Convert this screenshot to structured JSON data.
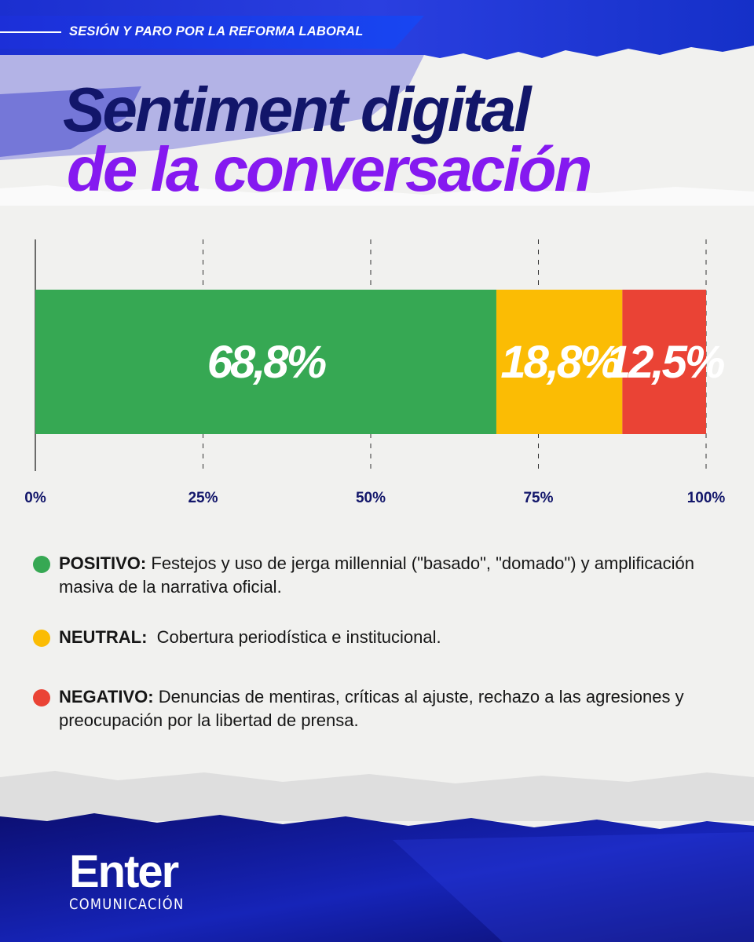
{
  "header": {
    "tag": "SESIÓN Y PARO POR LA REFORMA LABORAL"
  },
  "title": {
    "line1": "Sentiment digital",
    "line2": "de la conversación"
  },
  "colors": {
    "positivo": "#36a853",
    "neutral": "#fbbc04",
    "negativo": "#ea4335",
    "title_dark": "#12166a",
    "title_purple": "#8519f0",
    "header_blue": "#1c35e6",
    "footer_navy": "#0d0f7a"
  },
  "chart_data": {
    "type": "bar",
    "orientation": "horizontal-stacked",
    "xlim": [
      0,
      100
    ],
    "xticks": [
      "0%",
      "25%",
      "50%",
      "75%",
      "100%"
    ],
    "grid": true,
    "series": [
      {
        "name": "POSITIVO",
        "value": 68.8,
        "label": "68,8%",
        "color": "#36a853"
      },
      {
        "name": "NEUTRAL",
        "value": 18.8,
        "label": "18,8%",
        "color": "#fbbc04"
      },
      {
        "name": "NEGATIVO",
        "value": 12.5,
        "label": "12,5%",
        "color": "#ea4335"
      }
    ]
  },
  "legend": {
    "positivo": {
      "label": "POSITIVO:",
      "text": "Festejos y uso de jerga millennial (\"basado\", \"domado\") y amplificación masiva de la narrativa oficial."
    },
    "neutral": {
      "label": "NEUTRAL:",
      "text": "Cobertura periodística e institucional."
    },
    "negativo": {
      "label": "NEGATIVO:",
      "text": "Denuncias de mentiras, críticas al ajuste, rechazo a las agresiones y preocupación por la libertad de prensa."
    }
  },
  "logo": {
    "word": "Enter",
    "sub": "COMUNICACIÓN"
  }
}
